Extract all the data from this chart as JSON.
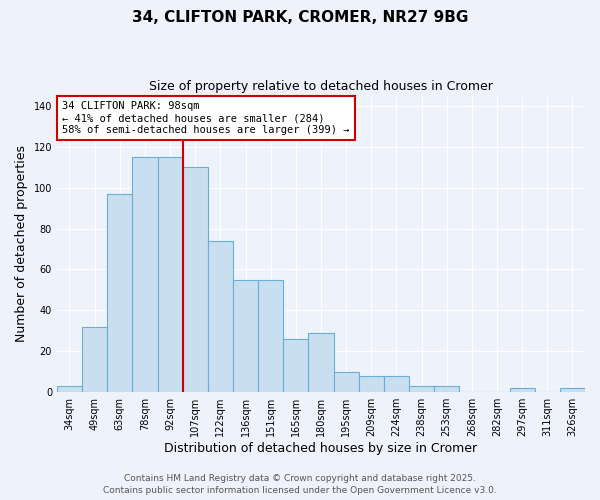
{
  "title": "34, CLIFTON PARK, CROMER, NR27 9BG",
  "subtitle": "Size of property relative to detached houses in Cromer",
  "xlabel": "Distribution of detached houses by size in Cromer",
  "ylabel": "Number of detached properties",
  "categories": [
    "34sqm",
    "49sqm",
    "63sqm",
    "78sqm",
    "92sqm",
    "107sqm",
    "122sqm",
    "136sqm",
    "151sqm",
    "165sqm",
    "180sqm",
    "195sqm",
    "209sqm",
    "224sqm",
    "238sqm",
    "253sqm",
    "268sqm",
    "282sqm",
    "297sqm",
    "311sqm",
    "326sqm"
  ],
  "values": [
    3,
    32,
    97,
    115,
    115,
    110,
    74,
    55,
    55,
    26,
    29,
    10,
    8,
    8,
    3,
    3,
    0,
    0,
    2,
    0,
    2
  ],
  "bar_color": "#c9dff0",
  "bar_edge_color": "#6aaed6",
  "vline_x_index": 4,
  "vline_color": "#cc0000",
  "annotation_title": "34 CLIFTON PARK: 98sqm",
  "annotation_line1": "← 41% of detached houses are smaller (284)",
  "annotation_line2": "58% of semi-detached houses are larger (399) →",
  "annotation_box_color": "#ffffff",
  "annotation_box_edge": "#cc0000",
  "ylim": [
    0,
    145
  ],
  "yticks": [
    0,
    20,
    40,
    60,
    80,
    100,
    120,
    140
  ],
  "footnote1": "Contains HM Land Registry data © Crown copyright and database right 2025.",
  "footnote2": "Contains public sector information licensed under the Open Government Licence v3.0.",
  "background_color": "#eef2fa",
  "title_fontsize": 11,
  "subtitle_fontsize": 9,
  "axis_label_fontsize": 9,
  "tick_fontsize": 7,
  "annotation_fontsize": 7.5,
  "footnote_fontsize": 6.5
}
